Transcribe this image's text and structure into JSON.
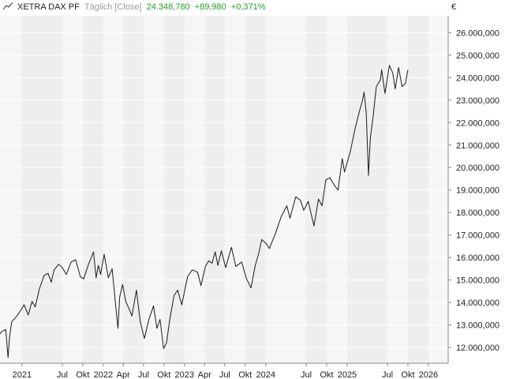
{
  "legend": {
    "name": "XETRA DAX PF",
    "mode": "Täglich [Close]",
    "last": "24.348,780",
    "change": "+89,980",
    "change_pct": "+0,371%",
    "change_color": "#22a02a"
  },
  "chart_data": {
    "type": "line",
    "title": "",
    "xlabel": "",
    "ylabel": "",
    "unit": "€",
    "xlim": [
      "2020-09-24",
      "2026-03-31"
    ],
    "ylim": [
      11300000,
      26750000
    ],
    "y_ticks": [
      12000000,
      13000000,
      14000000,
      15000000,
      16000000,
      17000000,
      18000000,
      19000000,
      20000000,
      21000000,
      22000000,
      23000000,
      24000000,
      25000000,
      26000000
    ],
    "y_tick_labels": [
      "12.000,000",
      "13.000,000",
      "14.000,000",
      "15.000,000",
      "16.000,000",
      "17.000,000",
      "18.000,000",
      "19.000,000",
      "20.000,000",
      "21.000,000",
      "22.000,000",
      "23.000,000",
      "24.000,000",
      "25.000,000",
      "26.000,000"
    ],
    "x_ticks": [
      {
        "date": "2021-01-01",
        "label": "2021"
      },
      {
        "date": "2021-07-01",
        "label": "Jul"
      },
      {
        "date": "2021-10-01",
        "label": "Okt"
      },
      {
        "date": "2022-01-01",
        "label": "2022"
      },
      {
        "date": "2022-04-01",
        "label": "Apr"
      },
      {
        "date": "2022-07-01",
        "label": "Jul"
      },
      {
        "date": "2022-10-01",
        "label": "Okt"
      },
      {
        "date": "2023-01-01",
        "label": "2023"
      },
      {
        "date": "2023-04-01",
        "label": "Apr"
      },
      {
        "date": "2023-07-01",
        "label": "Jul"
      },
      {
        "date": "2023-10-01",
        "label": "Okt"
      },
      {
        "date": "2024-01-01",
        "label": "2024"
      },
      {
        "date": "2024-07-01",
        "label": "Jul"
      },
      {
        "date": "2024-10-01",
        "label": "Okt"
      },
      {
        "date": "2025-01-01",
        "label": "2025"
      },
      {
        "date": "2025-07-01",
        "label": "Jul"
      },
      {
        "date": "2025-10-01",
        "label": "Okt"
      },
      {
        "date": "2026-01-01",
        "label": "2026"
      }
    ],
    "grid": true,
    "series": [
      {
        "name": "",
        "color": "#1a1a1a",
        "points": [
          [
            "2020-09-24",
            12600000
          ],
          [
            "2020-10-01",
            12700000
          ],
          [
            "2020-10-20",
            12800000
          ],
          [
            "2020-10-30",
            11550000
          ],
          [
            "2020-11-06",
            12450000
          ],
          [
            "2020-11-16",
            13150000
          ],
          [
            "2020-12-01",
            13300000
          ],
          [
            "2020-12-20",
            13550000
          ],
          [
            "2021-01-10",
            13900000
          ],
          [
            "2021-01-29",
            13450000
          ],
          [
            "2021-02-15",
            14050000
          ],
          [
            "2021-03-01",
            13800000
          ],
          [
            "2021-03-20",
            14600000
          ],
          [
            "2021-04-10",
            15200000
          ],
          [
            "2021-04-28",
            15300000
          ],
          [
            "2021-05-12",
            14900000
          ],
          [
            "2021-05-25",
            15450000
          ],
          [
            "2021-06-15",
            15700000
          ],
          [
            "2021-07-01",
            15550000
          ],
          [
            "2021-07-19",
            15250000
          ],
          [
            "2021-08-10",
            15800000
          ],
          [
            "2021-08-30",
            15900000
          ],
          [
            "2021-09-20",
            15150000
          ],
          [
            "2021-10-05",
            15050000
          ],
          [
            "2021-10-25",
            15650000
          ],
          [
            "2021-11-18",
            16250000
          ],
          [
            "2021-11-30",
            15100000
          ],
          [
            "2021-12-10",
            15650000
          ],
          [
            "2021-12-20",
            15250000
          ],
          [
            "2022-01-05",
            16150000
          ],
          [
            "2022-01-24",
            15100000
          ],
          [
            "2022-02-10",
            15500000
          ],
          [
            "2022-02-24",
            14050000
          ],
          [
            "2022-03-08",
            12850000
          ],
          [
            "2022-03-16",
            14250000
          ],
          [
            "2022-03-29",
            14800000
          ],
          [
            "2022-04-12",
            14050000
          ],
          [
            "2022-04-28",
            13700000
          ],
          [
            "2022-05-10",
            13400000
          ],
          [
            "2022-05-30",
            14550000
          ],
          [
            "2022-06-16",
            13150000
          ],
          [
            "2022-07-05",
            12400000
          ],
          [
            "2022-07-25",
            13250000
          ],
          [
            "2022-08-15",
            13850000
          ],
          [
            "2022-08-30",
            12850000
          ],
          [
            "2022-09-13",
            13250000
          ],
          [
            "2022-09-29",
            11950000
          ],
          [
            "2022-10-12",
            12200000
          ],
          [
            "2022-10-27",
            13250000
          ],
          [
            "2022-11-15",
            14300000
          ],
          [
            "2022-12-01",
            14550000
          ],
          [
            "2022-12-20",
            13900000
          ],
          [
            "2023-01-15",
            15150000
          ],
          [
            "2023-02-05",
            15450000
          ],
          [
            "2023-03-01",
            15350000
          ],
          [
            "2023-03-16",
            14750000
          ],
          [
            "2023-04-05",
            15600000
          ],
          [
            "2023-04-20",
            15850000
          ],
          [
            "2023-05-05",
            15750000
          ],
          [
            "2023-05-19",
            16250000
          ],
          [
            "2023-05-31",
            15650000
          ],
          [
            "2023-06-16",
            16300000
          ],
          [
            "2023-07-05",
            15550000
          ],
          [
            "2023-07-31",
            16450000
          ],
          [
            "2023-08-20",
            15600000
          ],
          [
            "2023-09-15",
            15800000
          ],
          [
            "2023-10-05",
            15100000
          ],
          [
            "2023-10-27",
            14650000
          ],
          [
            "2023-11-15",
            15650000
          ],
          [
            "2023-12-01",
            16200000
          ],
          [
            "2023-12-14",
            16800000
          ],
          [
            "2024-01-05",
            16600000
          ],
          [
            "2024-01-17",
            16400000
          ],
          [
            "2024-02-15",
            17100000
          ],
          [
            "2024-03-10",
            17800000
          ],
          [
            "2024-04-05",
            18300000
          ],
          [
            "2024-04-19",
            17750000
          ],
          [
            "2024-05-15",
            18700000
          ],
          [
            "2024-06-05",
            18550000
          ],
          [
            "2024-06-20",
            18100000
          ],
          [
            "2024-07-10",
            18500000
          ],
          [
            "2024-08-05",
            17400000
          ],
          [
            "2024-08-25",
            18600000
          ],
          [
            "2024-09-10",
            18300000
          ],
          [
            "2024-09-27",
            19450000
          ],
          [
            "2024-10-15",
            19550000
          ],
          [
            "2024-11-05",
            19200000
          ],
          [
            "2024-11-21",
            19000000
          ],
          [
            "2024-12-10",
            20400000
          ],
          [
            "2024-12-20",
            19800000
          ],
          [
            "2025-01-15",
            20700000
          ],
          [
            "2025-02-05",
            21700000
          ],
          [
            "2025-02-25",
            22500000
          ],
          [
            "2025-03-10",
            22950000
          ],
          [
            "2025-03-18",
            23350000
          ],
          [
            "2025-03-28",
            22400000
          ],
          [
            "2025-04-07",
            19650000
          ],
          [
            "2025-04-15",
            21300000
          ],
          [
            "2025-04-28",
            22300000
          ],
          [
            "2025-05-12",
            23600000
          ],
          [
            "2025-05-30",
            23900000
          ],
          [
            "2025-06-05",
            24350000
          ],
          [
            "2025-06-20",
            23300000
          ],
          [
            "2025-07-10",
            24550000
          ],
          [
            "2025-07-25",
            24200000
          ],
          [
            "2025-08-05",
            23500000
          ],
          [
            "2025-08-20",
            24450000
          ],
          [
            "2025-09-05",
            23600000
          ],
          [
            "2025-09-20",
            23750000
          ],
          [
            "2025-10-01",
            24350000
          ]
        ]
      }
    ]
  }
}
